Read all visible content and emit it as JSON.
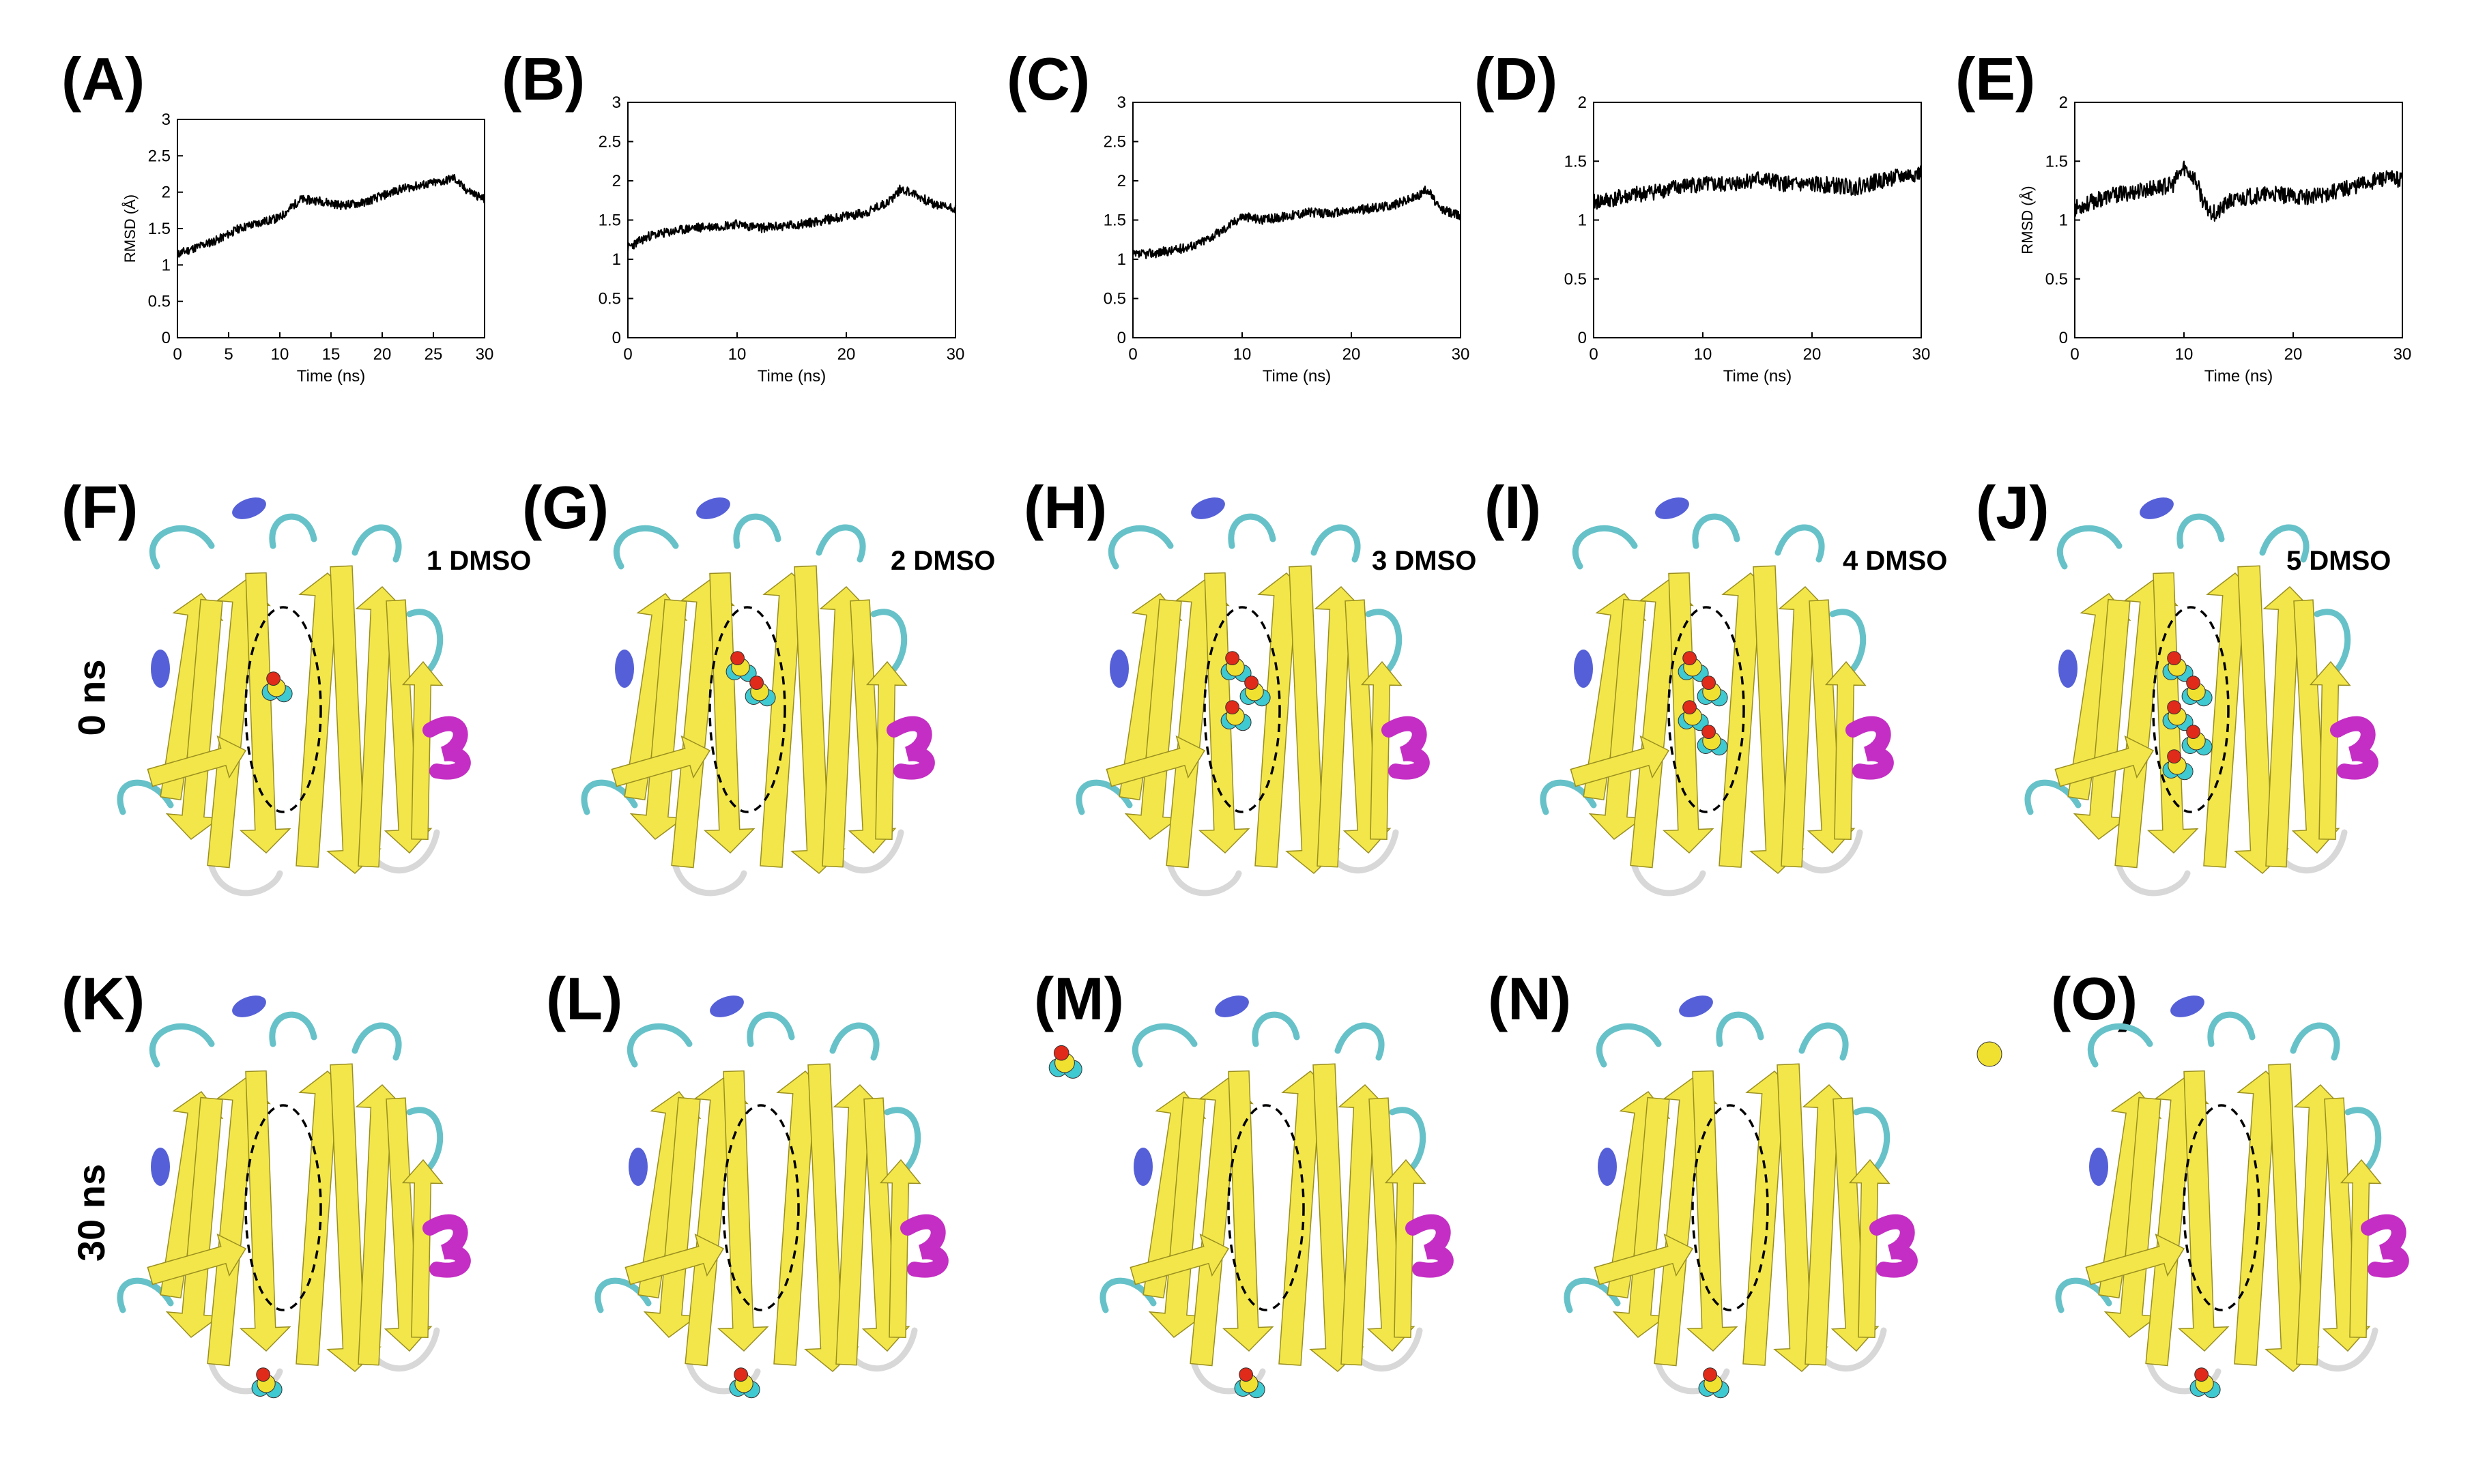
{
  "panels": {
    "charts": [
      "(A)",
      "(B)",
      "(C)",
      "(D)",
      "(E)"
    ],
    "row0": [
      "(F)",
      "(G)",
      "(H)",
      "(I)",
      "(J)"
    ],
    "row30": [
      "(K)",
      "(L)",
      "(M)",
      "(N)",
      "(O)"
    ]
  },
  "row_labels": {
    "zero": "0 ns",
    "thirty": "30 ns"
  },
  "dmso_labels": [
    "1 DMSO",
    "2 DMSO",
    "3 DMSO",
    "4 DMSO",
    "5 DMSO"
  ],
  "colors": {
    "sheet": "#f2e64a",
    "coil": "#66c2c8",
    "turn": "#d8d8d8",
    "helix_310": "#5560d8",
    "alpha_helix": "#c42ec4",
    "dmso_carbon": "#3fc9d0",
    "dmso_sulfur": "#f0e030",
    "dmso_oxygen": "#e02a1a"
  },
  "chart_data": [
    {
      "type": "line",
      "panel": "(A)",
      "xlabel": "Time (ns)",
      "ylabel": "RMSD (Å)",
      "xlim": [
        0,
        30
      ],
      "ylim": [
        0,
        3
      ],
      "xticks": [
        "0",
        "5",
        "10",
        "15",
        "20",
        "25",
        "30"
      ],
      "yticks": [
        "0",
        "0.5",
        "1",
        "1.5",
        "2",
        "2.5",
        "3"
      ],
      "x": [
        0,
        2,
        4,
        6,
        8,
        10,
        12,
        14,
        16,
        18,
        20,
        22,
        24,
        26,
        27,
        28,
        30
      ],
      "y": [
        1.15,
        1.25,
        1.35,
        1.5,
        1.58,
        1.65,
        1.9,
        1.88,
        1.82,
        1.85,
        1.95,
        2.05,
        2.1,
        2.15,
        2.2,
        2.05,
        1.9
      ],
      "noise": 0.06,
      "seed": 11
    },
    {
      "type": "line",
      "panel": "(B)",
      "xlabel": "Time (ns)",
      "ylabel": "",
      "xlim": [
        0,
        30
      ],
      "ylim": [
        0,
        3
      ],
      "xticks": [
        "0",
        "10",
        "20",
        "30"
      ],
      "yticks": [
        "0",
        "0.5",
        "1",
        "1.5",
        "2",
        "2.5",
        "3"
      ],
      "x": [
        0,
        2,
        4,
        6,
        8,
        10,
        12,
        14,
        16,
        18,
        20,
        22,
        24,
        25,
        26,
        28,
        30
      ],
      "y": [
        1.15,
        1.3,
        1.35,
        1.4,
        1.42,
        1.45,
        1.4,
        1.42,
        1.45,
        1.5,
        1.55,
        1.6,
        1.75,
        1.9,
        1.85,
        1.7,
        1.65
      ],
      "noise": 0.06,
      "seed": 23
    },
    {
      "type": "line",
      "panel": "(C)",
      "xlabel": "Time (ns)",
      "ylabel": "",
      "xlim": [
        0,
        30
      ],
      "ylim": [
        0,
        3
      ],
      "xticks": [
        "0",
        "10",
        "20",
        "30"
      ],
      "yticks": [
        "0",
        "0.5",
        "1",
        "1.5",
        "2",
        "2.5",
        "3"
      ],
      "x": [
        0,
        2,
        4,
        6,
        8,
        10,
        12,
        14,
        16,
        18,
        20,
        22,
        24,
        26,
        27,
        28,
        30
      ],
      "y": [
        1.05,
        1.08,
        1.12,
        1.2,
        1.35,
        1.55,
        1.5,
        1.55,
        1.6,
        1.58,
        1.62,
        1.65,
        1.7,
        1.8,
        1.9,
        1.65,
        1.55
      ],
      "noise": 0.06,
      "seed": 37
    },
    {
      "type": "line",
      "panel": "(D)",
      "xlabel": "Time (ns)",
      "ylabel": "",
      "xlim": [
        0,
        30
      ],
      "ylim": [
        0,
        2
      ],
      "xticks": [
        "0",
        "10",
        "20",
        "30"
      ],
      "yticks": [
        "0",
        "0.5",
        "1",
        "1.5",
        "2"
      ],
      "x": [
        0,
        3,
        6,
        9,
        12,
        15,
        18,
        21,
        24,
        27,
        30
      ],
      "y": [
        1.15,
        1.2,
        1.25,
        1.3,
        1.3,
        1.35,
        1.3,
        1.3,
        1.28,
        1.35,
        1.4
      ],
      "noise": 0.07,
      "seed": 41
    },
    {
      "type": "line",
      "panel": "(E)",
      "xlabel": "Time (ns)",
      "ylabel": "RMSD (Å)",
      "xlim": [
        0,
        30
      ],
      "ylim": [
        0,
        2
      ],
      "xticks": [
        "0",
        "10",
        "20",
        "30"
      ],
      "yticks": [
        "0",
        "0.5",
        "1",
        "1.5",
        "2"
      ],
      "x": [
        0,
        3,
        6,
        9,
        10,
        11,
        12,
        13,
        14,
        16,
        18,
        20,
        22,
        24,
        26,
        28,
        30
      ],
      "y": [
        1.1,
        1.2,
        1.25,
        1.3,
        1.45,
        1.35,
        1.1,
        1.05,
        1.15,
        1.2,
        1.22,
        1.2,
        1.2,
        1.25,
        1.3,
        1.35,
        1.35
      ],
      "noise": 0.07,
      "seed": 53
    }
  ]
}
